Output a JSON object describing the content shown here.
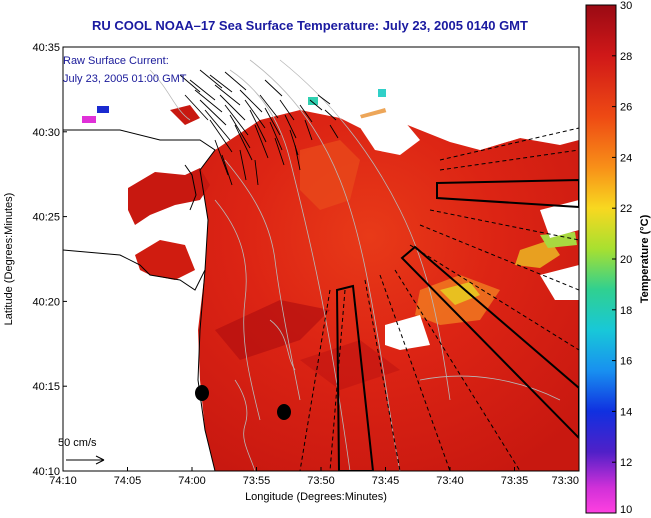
{
  "title": "RU COOL  NOAA–17  Sea Surface Temperature:  July 23, 2005 0140 GMT",
  "current_legend": {
    "line1": "Raw Surface Current:",
    "line2": "July 23, 2005 01:00 GMT"
  },
  "scale_arrow_label": "50 cm/s",
  "colorbar": {
    "label": "Temperature (°C)",
    "ticks": [
      "30",
      "28",
      "26",
      "24",
      "22",
      "20",
      "18",
      "16",
      "14",
      "12",
      "10"
    ]
  },
  "x_axis": {
    "label": "Longitude (Degrees:Minutes)",
    "ticks": [
      "74:10",
      "74:05",
      "74:00",
      "73:55",
      "73:50",
      "73:45",
      "73:40",
      "73:35",
      "73:30"
    ]
  },
  "y_axis": {
    "label": "Latitude (Degrees:Minutes)",
    "ticks": [
      "40:35",
      "40:30",
      "40:25",
      "40:20",
      "40:15",
      "40:10"
    ]
  },
  "colors": {
    "title": "#1a1aa0",
    "sea_warm": "#e02010",
    "sea_hot": "#c81010",
    "land": "#ffffff"
  }
}
